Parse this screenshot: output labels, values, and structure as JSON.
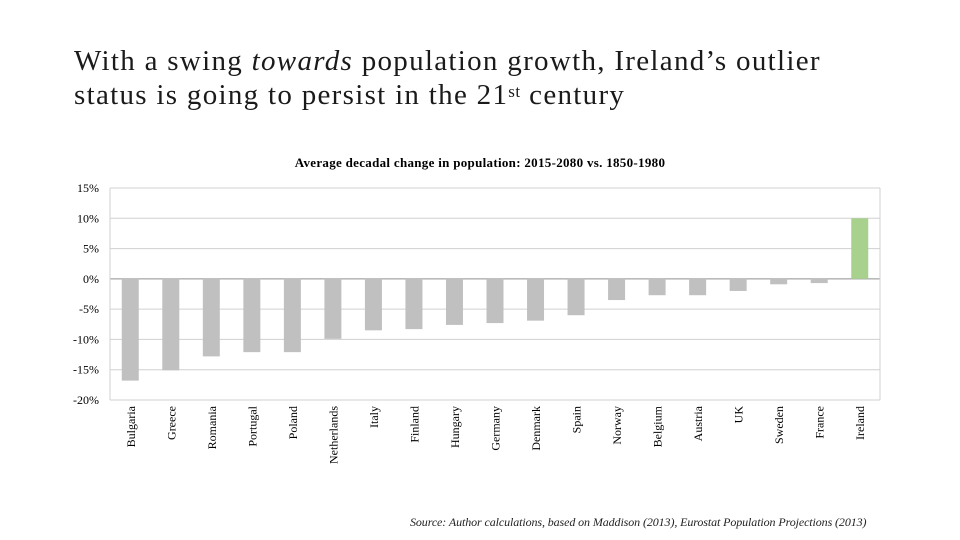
{
  "slide": {
    "title_part1": "With a swing ",
    "title_emph": "towards",
    "title_part2": " population growth, Ireland’s outlier status is going to persist in the 21",
    "title_sup": "st",
    "title_part3": " century",
    "source": "Source: Author calculations, based on Maddison (2013), Eurostat Population Projections (2013)"
  },
  "colors": {
    "bar_default": "#c0c0c0",
    "bar_highlight": "#a9d18e",
    "gridline": "#d0d0d0",
    "axis": "#999999"
  },
  "chart_data": {
    "type": "bar",
    "title": "Average decadal change in population: 2015-2080 vs. 1850-1980",
    "xlabel": "",
    "ylabel": "",
    "ylim": [
      -20,
      15
    ],
    "yticks": [
      15,
      10,
      5,
      0,
      -5,
      -10,
      -15,
      -20
    ],
    "ytick_labels": [
      "15%",
      "10%",
      "5%",
      "0%",
      "-5%",
      "-10%",
      "-15%",
      "-20%"
    ],
    "grid": true,
    "categories": [
      "Bulgaria",
      "Greece",
      "Romania",
      "Portugal",
      "Poland",
      "Netherlands",
      "Italy",
      "Finland",
      "Hungary",
      "Germany",
      "Denmark",
      "Spain",
      "Norway",
      "Belgium",
      "Austria",
      "UK",
      "Sweden",
      "France",
      "Ireland"
    ],
    "values": [
      -16.8,
      -15.1,
      -12.8,
      -12.1,
      -12.1,
      -9.9,
      -8.5,
      -8.3,
      -7.6,
      -7.3,
      -6.9,
      -6.0,
      -3.5,
      -2.7,
      -2.7,
      -2.0,
      -0.9,
      -0.7,
      10.0
    ],
    "highlight": [
      "Ireland"
    ]
  }
}
